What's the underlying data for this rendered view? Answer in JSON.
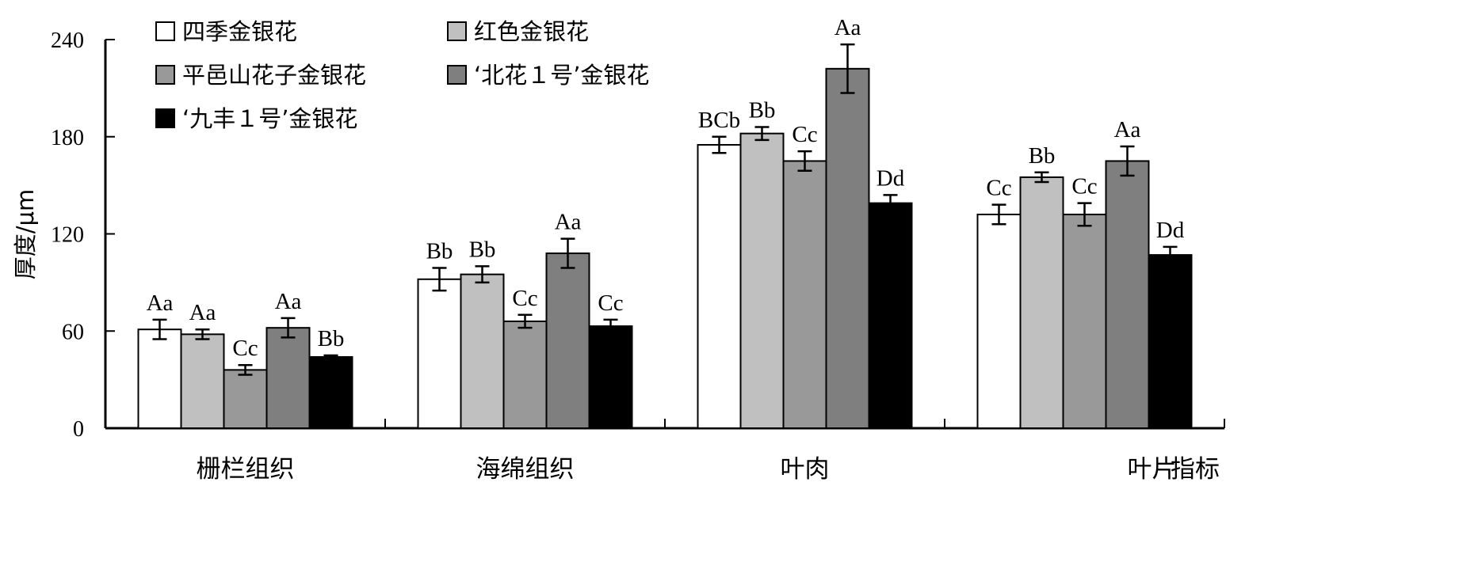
{
  "chart_data": {
    "type": "bar",
    "ylabel": "厚度/μm",
    "xlabel": "指标",
    "ylim": [
      0,
      240
    ],
    "yticks": [
      0,
      60,
      120,
      180,
      240
    ],
    "grid": false,
    "legend_position": "top-left",
    "categories": [
      "栅栏组织",
      "海绵组织",
      "叶肉",
      "叶片"
    ],
    "series": [
      {
        "name": "四季金银花",
        "color": "#ffffff",
        "values": [
          61,
          92,
          175,
          132
        ],
        "errors": [
          6,
          7,
          5,
          6
        ],
        "labels": [
          "Aa",
          "Bb",
          "BCb",
          "Cc"
        ]
      },
      {
        "name": "红色金银花",
        "color": "#c0c0c0",
        "values": [
          58,
          95,
          182,
          155
        ],
        "errors": [
          3,
          5,
          4,
          3
        ],
        "labels": [
          "Aa",
          "Bb",
          "Bb",
          "Bb"
        ]
      },
      {
        "name": "平邑山花子金银花",
        "color": "#999999",
        "values": [
          36,
          66,
          165,
          132
        ],
        "errors": [
          3,
          4,
          6,
          7
        ],
        "labels": [
          "Cc",
          "Cc",
          "Cc",
          "Cc"
        ]
      },
      {
        "name": "‘北花１号’金银花",
        "color": "#7f7f7f",
        "values": [
          62,
          108,
          222,
          165
        ],
        "errors": [
          6,
          9,
          15,
          9
        ],
        "labels": [
          "Aa",
          "Aa",
          "Aa",
          "Aa"
        ]
      },
      {
        "name": "‘九丰１号’金银花",
        "color": "#000000",
        "values": [
          44,
          63,
          139,
          107
        ],
        "errors": [
          1,
          4,
          5,
          5
        ],
        "labels": [
          "Bb",
          "Cc",
          "Dd",
          "Dd"
        ]
      }
    ]
  }
}
